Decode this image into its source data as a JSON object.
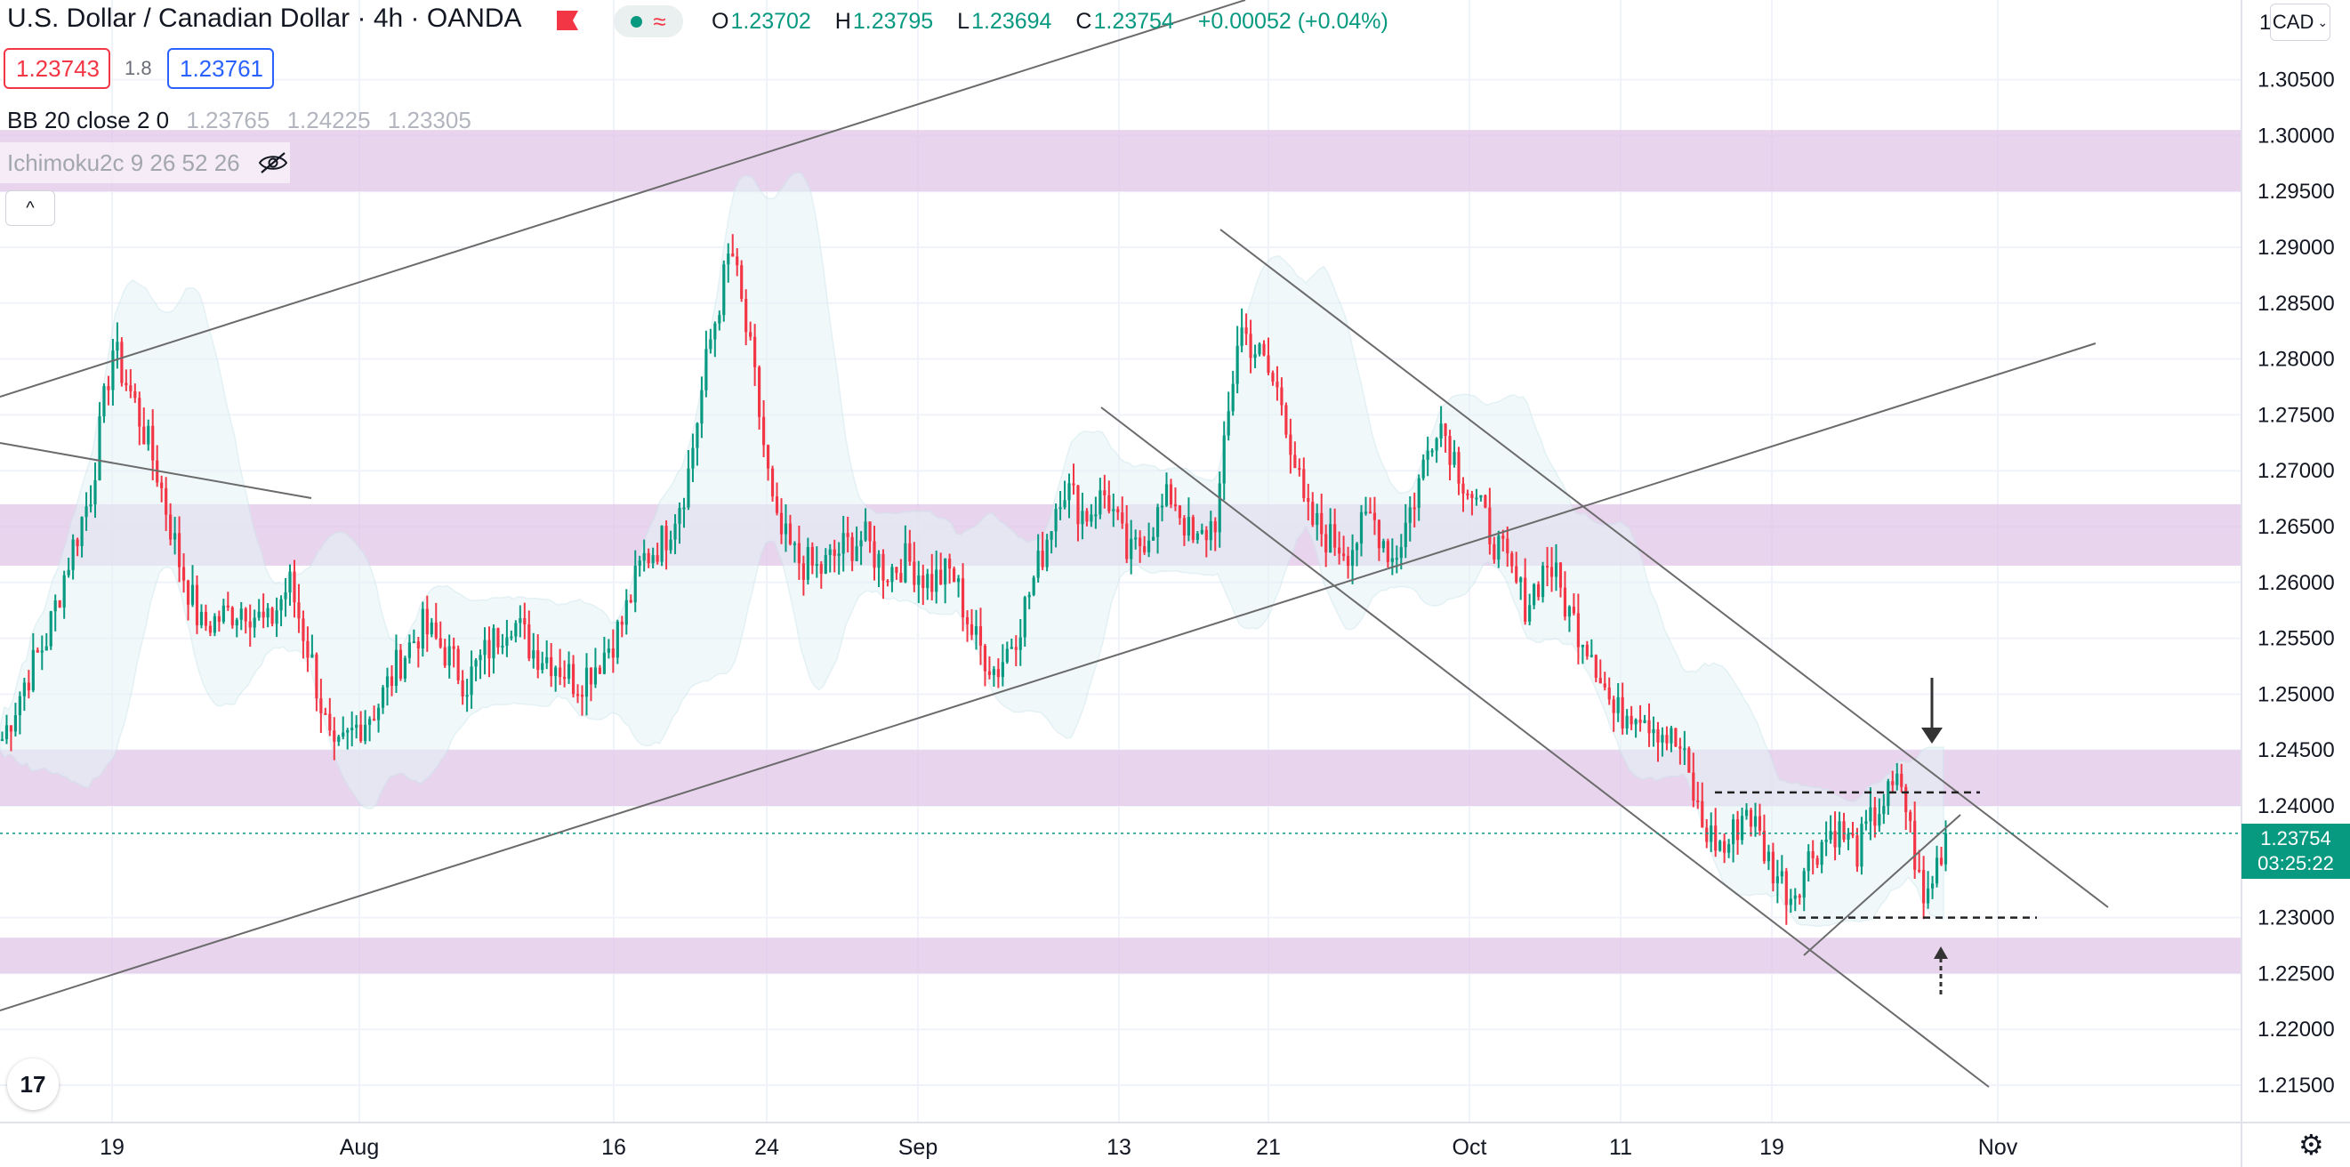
{
  "header": {
    "symbol_title": "U.S. Dollar / Canadian Dollar · 4h · OANDA",
    "ohlc": {
      "o_label": "O",
      "o": "1.23702",
      "h_label": "H",
      "h": "1.23795",
      "l_label": "L",
      "l": "1.23694",
      "c_label": "C",
      "c": "1.23754",
      "change": "+0.00052 (+0.04%)"
    },
    "sell_price": "1.23743",
    "spread": "1.8",
    "buy_price": "1.23761",
    "bb_label": "BB 20 close 2 0",
    "bb_values": [
      "1.23765",
      "1.24225",
      "1.23305"
    ],
    "ichimoku_label": "Ichimoku2c 9 26 52 26",
    "collapse_glyph": "^"
  },
  "price_axis": {
    "currency": "CAD",
    "top_label_partial": "1",
    "ticks": [
      "1.30500",
      "1.30000",
      "1.29500",
      "1.29000",
      "1.28500",
      "1.28000",
      "1.27500",
      "1.27000",
      "1.26500",
      "1.26000",
      "1.25500",
      "1.25000",
      "1.24500",
      "1.24000",
      "1.23000",
      "1.22500",
      "1.22000",
      "1.21500"
    ],
    "last_price": "1.23754",
    "countdown": "03:25:22"
  },
  "time_axis": {
    "ticks": [
      "19",
      "Aug",
      "16",
      "24",
      "Sep",
      "13",
      "21",
      "Oct",
      "11",
      "19",
      "Nov"
    ]
  },
  "chart_data": {
    "type": "candlestick",
    "price_range": [
      1.211,
      1.312
    ],
    "close_path": [
      [
        0,
        1.246
      ],
      [
        1,
        1.251
      ],
      [
        2,
        1.255
      ],
      [
        3,
        1.262
      ],
      [
        4,
        1.268
      ],
      [
        5,
        1.281
      ],
      [
        6,
        1.276
      ],
      [
        7,
        1.27
      ],
      [
        8,
        1.262
      ],
      [
        9,
        1.256
      ],
      [
        10,
        1.257
      ],
      [
        11,
        1.258
      ],
      [
        12,
        1.256
      ],
      [
        13,
        1.26
      ],
      [
        14,
        1.253
      ],
      [
        15,
        1.244
      ],
      [
        16,
        1.247
      ],
      [
        17,
        1.249
      ],
      [
        18,
        1.253
      ],
      [
        19,
        1.256
      ],
      [
        20,
        1.254
      ],
      [
        21,
        1.251
      ],
      [
        22,
        1.254
      ],
      [
        23,
        1.257
      ],
      [
        24,
        1.254
      ],
      [
        25,
        1.253
      ],
      [
        26,
        1.251
      ],
      [
        27,
        1.253
      ],
      [
        28,
        1.256
      ],
      [
        29,
        1.262
      ],
      [
        30,
        1.264
      ],
      [
        31,
        1.269
      ],
      [
        32,
        1.281
      ],
      [
        33,
        1.29
      ],
      [
        34,
        1.279
      ],
      [
        35,
        1.265
      ],
      [
        36,
        1.262
      ],
      [
        37,
        1.261
      ],
      [
        38,
        1.263
      ],
      [
        39,
        1.264
      ],
      [
        40,
        1.261
      ],
      [
        41,
        1.262
      ],
      [
        42,
        1.26
      ],
      [
        43,
        1.261
      ],
      [
        44,
        1.255
      ],
      [
        45,
        1.252
      ],
      [
        46,
        1.256
      ],
      [
        47,
        1.262
      ],
      [
        48,
        1.269
      ],
      [
        49,
        1.266
      ],
      [
        50,
        1.268
      ],
      [
        51,
        1.262
      ],
      [
        52,
        1.265
      ],
      [
        53,
        1.268
      ],
      [
        54,
        1.263
      ],
      [
        55,
        1.266
      ],
      [
        56,
        1.283
      ],
      [
        57,
        1.28
      ],
      [
        58,
        1.276
      ],
      [
        59,
        1.266
      ],
      [
        60,
        1.264
      ],
      [
        61,
        1.263
      ],
      [
        62,
        1.266
      ],
      [
        63,
        1.262
      ],
      [
        64,
        1.268
      ],
      [
        65,
        1.275
      ],
      [
        66,
        1.27
      ],
      [
        67,
        1.266
      ],
      [
        68,
        1.262
      ],
      [
        69,
        1.258
      ],
      [
        70,
        1.262
      ],
      [
        71,
        1.257
      ],
      [
        72,
        1.254
      ],
      [
        73,
        1.248
      ],
      [
        74,
        1.249
      ],
      [
        75,
        1.247
      ],
      [
        76,
        1.245
      ],
      [
        77,
        1.238
      ],
      [
        78,
        1.236
      ],
      [
        79,
        1.24
      ],
      [
        80,
        1.235
      ],
      [
        81,
        1.232
      ],
      [
        82,
        1.236
      ],
      [
        83,
        1.238
      ],
      [
        84,
        1.236
      ],
      [
        85,
        1.24
      ],
      [
        86,
        1.242
      ],
      [
        87,
        1.231
      ],
      [
        88,
        1.2375
      ]
    ],
    "levels": {
      "range_high": 1.2412,
      "range_low": 1.23,
      "last": 1.23754
    },
    "zones": [
      [
        1.295,
        1.3005
      ],
      [
        1.2615,
        1.267
      ],
      [
        1.24,
        1.245
      ],
      [
        1.225,
        1.2282
      ]
    ]
  },
  "colors": {
    "up": "#089981",
    "down": "#f23645",
    "zone": "#e1c6e8",
    "grid": "#f0f3fa",
    "line": "#555555"
  }
}
